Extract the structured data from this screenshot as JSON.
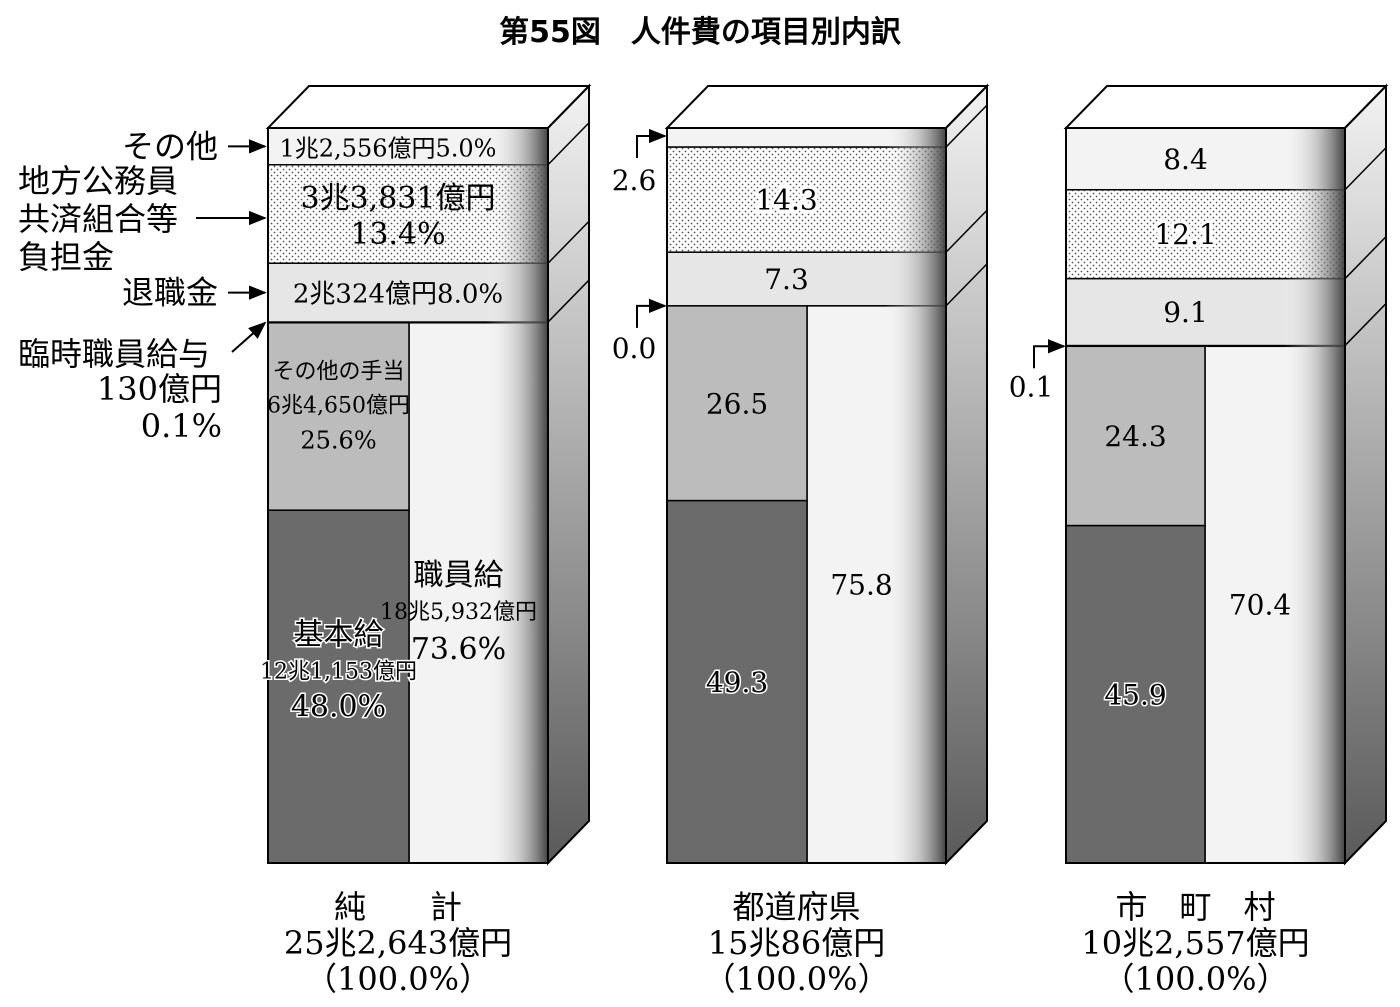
{
  "chart_data": {
    "type": "bar",
    "title": "第55図　人件費の項目別内訳",
    "stacked": true,
    "style": "3d-stacked-column",
    "categories": [
      "純　　計",
      "都道府県",
      "市　町　村"
    ],
    "category_totals": [
      "25兆2,643億円",
      "15兆86億円",
      "10兆2,557億円"
    ],
    "category_total_pct": [
      "（100.0%）",
      "（100.0%）",
      "（100.0%）"
    ],
    "series": [
      {
        "name": "基本給",
        "values": [
          48.0,
          49.3,
          45.9
        ],
        "color": "#6b6b6b"
      },
      {
        "name": "その他の手当",
        "values": [
          25.6,
          26.5,
          24.3
        ],
        "color": "#bcbcbc"
      },
      {
        "name": "臨時職員給与",
        "values": [
          0.1,
          0.0,
          0.1
        ],
        "color": "#f3f3f3"
      },
      {
        "name": "退職金",
        "values": [
          8.0,
          7.3,
          9.1
        ],
        "color": "#e6e6e6"
      },
      {
        "name": "地方公務員共済組合等負担金",
        "values": [
          13.4,
          14.3,
          12.1
        ],
        "color": "#dotted"
      },
      {
        "name": "その他",
        "values": [
          5.0,
          2.6,
          8.4
        ],
        "color": "#f3f3f3"
      }
    ],
    "group": {
      "name": "職員給",
      "values": [
        73.6,
        75.8,
        70.4
      ]
    },
    "side_labels": {
      "sonota": "その他",
      "kyosai": [
        "地方公務員",
        "共済組合等",
        "負担金"
      ],
      "taishoku": "退職金",
      "rinji": [
        "臨時職員給与",
        "130億円",
        "0.1%"
      ]
    },
    "segment_labels": {
      "bar1": {
        "sonota": "1兆2,556億円5.0%",
        "kyosai": [
          "3兆3,831億円",
          "13.4%"
        ],
        "taishoku": "2兆324億円8.0%",
        "teate": [
          "その他の手当",
          "6兆4,650億円",
          "25.6%"
        ],
        "kihon": [
          "基本給",
          "12兆1,153億円",
          "48.0%"
        ],
        "shokuin": [
          "職員給",
          "18兆5,932億円",
          "73.6%"
        ]
      },
      "bar2": {
        "sonota": "2.6",
        "kyosai": "14.3",
        "taishoku": "7.3",
        "rinji": "0.0",
        "teate": "26.5",
        "kihon": "49.3",
        "shokuin": "75.8"
      },
      "bar3": {
        "sonota": "8.4",
        "kyosai": "12.1",
        "taishoku": "9.1",
        "rinji": "0.1",
        "teate": "24.3",
        "kihon": "45.9",
        "shokuin": "70.4"
      }
    },
    "ylim": [
      0,
      100
    ]
  }
}
